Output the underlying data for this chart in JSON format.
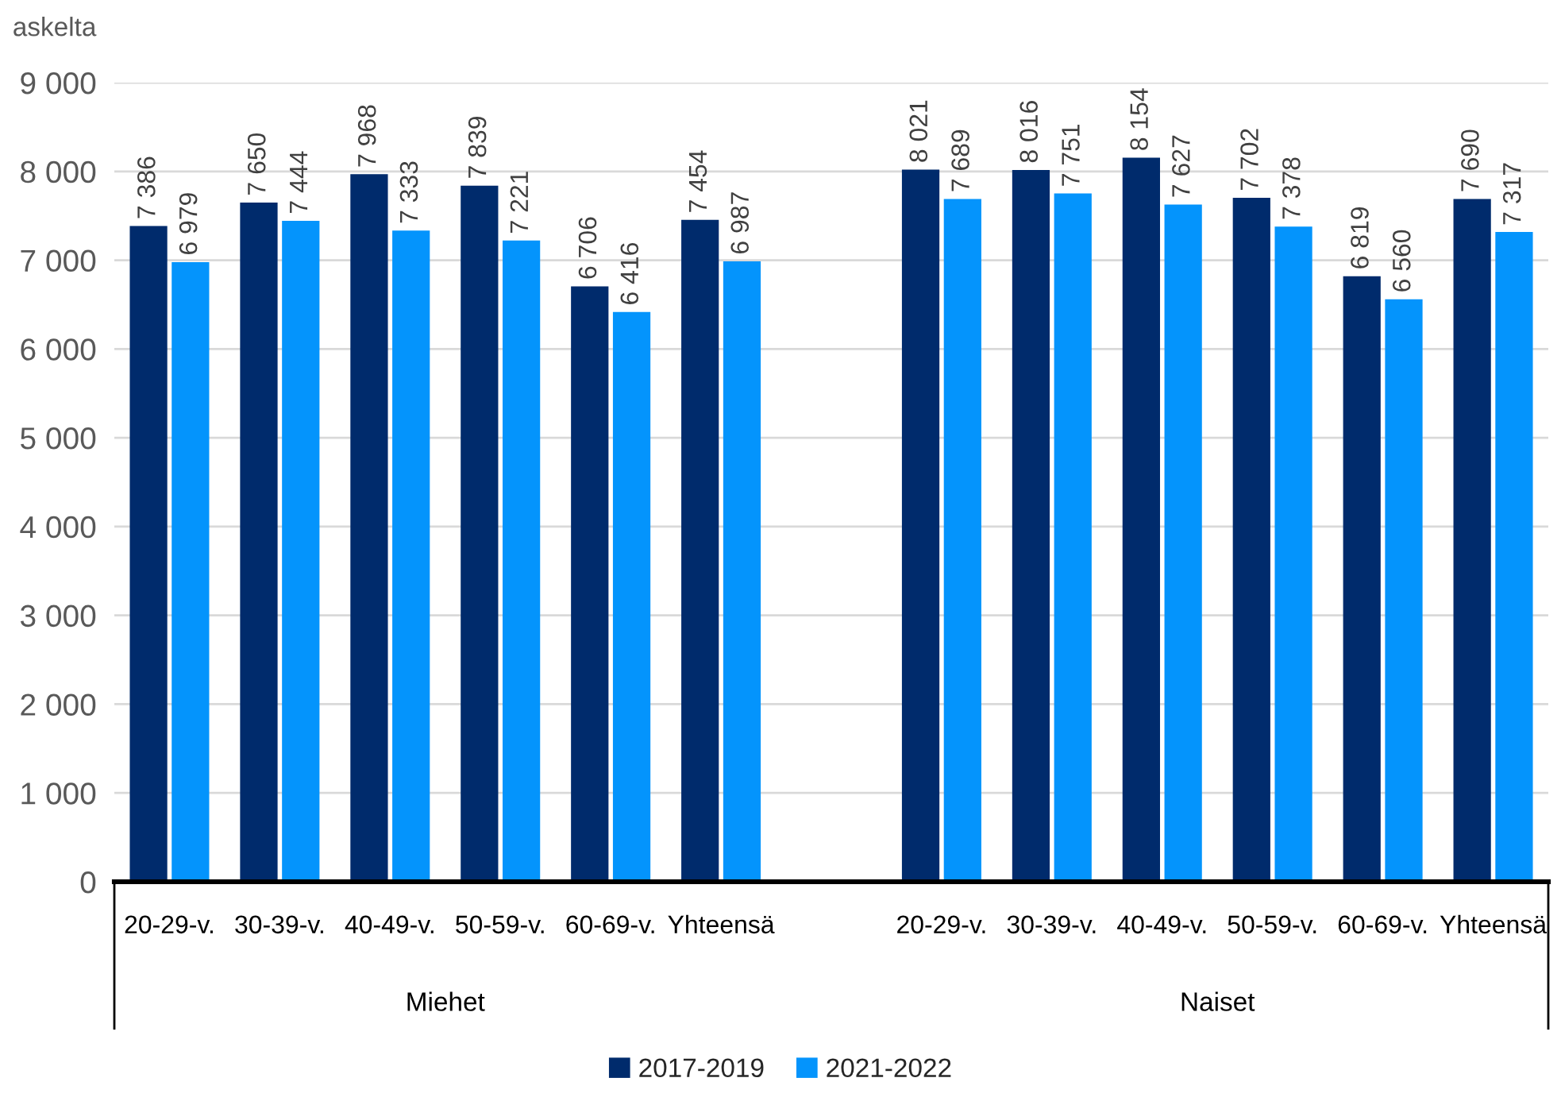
{
  "chart_data": {
    "type": "bar",
    "ylabel": "askelta",
    "categories": [
      "20-29-v.",
      "30-39-v.",
      "40-49-v.",
      "50-59-v.",
      "60-69-v.",
      "Yhteensä",
      null,
      "20-29-v.",
      "30-39-v.",
      "40-49-v.",
      "50-59-v.",
      "60-69-v.",
      "Yhteensä"
    ],
    "series": [
      {
        "name": "2017-2019",
        "color": "#002b6c",
        "values": [
          7386,
          7650,
          7968,
          7839,
          6706,
          7454,
          null,
          8021,
          8016,
          8154,
          7702,
          6819,
          7690
        ],
        "value_labels": [
          "7 386",
          "7 650",
          "7 968",
          "7 839",
          "6 706",
          "7 454",
          null,
          "8 021",
          "8 016",
          "8 154",
          "7 702",
          "6 819",
          "7 690"
        ]
      },
      {
        "name": "2021-2022",
        "color": "#0494fc",
        "values": [
          6979,
          7444,
          7333,
          7221,
          6416,
          6987,
          null,
          7689,
          7751,
          7627,
          7378,
          6560,
          7317
        ],
        "value_labels": [
          "6 979",
          "7 444",
          "7 333",
          "7 221",
          "6 416",
          "6 987",
          null,
          "7 689",
          "7 751",
          "7 627",
          "7 378",
          "6 560",
          "7 317"
        ]
      }
    ],
    "ylim": [
      0,
      9000
    ],
    "yticks": [
      0,
      {
        "value": 1000,
        "label": "1 000"
      },
      {
        "value": 2000,
        "label": "2 000"
      },
      {
        "value": 3000,
        "label": "3 000"
      },
      {
        "value": 4000,
        "label": "4 000"
      },
      {
        "value": 5000,
        "label": "5 000"
      },
      {
        "value": 6000,
        "label": "6 000"
      },
      {
        "value": 7000,
        "label": "7 000"
      },
      {
        "value": 8000,
        "label": "8 000"
      },
      {
        "value": 9000,
        "label": "9 000"
      }
    ],
    "grid": "y",
    "legend": "bottom",
    "annotations": [
      "Miehet",
      "Naiset"
    ]
  }
}
